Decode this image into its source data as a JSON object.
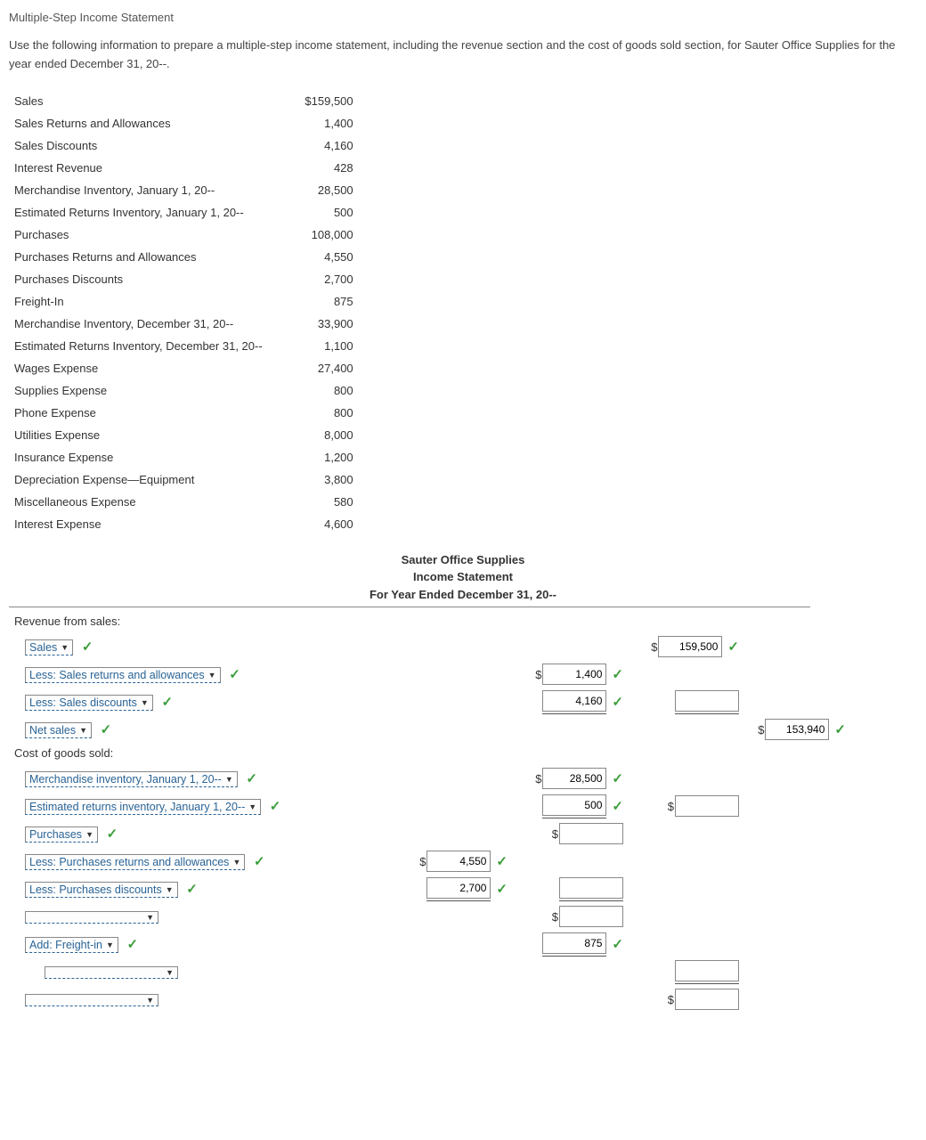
{
  "title": "Multiple-Step Income Statement",
  "instructions": "Use the following information to prepare a multiple-step income statement, including the revenue section and the cost of goods sold section, for Sauter Office Supplies for the year ended December 31, 20--.",
  "given": [
    {
      "label": "Sales",
      "value": "$159,500"
    },
    {
      "label": "Sales Returns and Allowances",
      "value": "1,400"
    },
    {
      "label": "Sales Discounts",
      "value": "4,160"
    },
    {
      "label": "Interest Revenue",
      "value": "428"
    },
    {
      "label": "Merchandise Inventory, January 1, 20--",
      "value": "28,500"
    },
    {
      "label": "Estimated Returns Inventory, January 1, 20--",
      "value": "500"
    },
    {
      "label": "Purchases",
      "value": "108,000"
    },
    {
      "label": "Purchases Returns and Allowances",
      "value": "4,550"
    },
    {
      "label": "Purchases Discounts",
      "value": "2,700"
    },
    {
      "label": "Freight-In",
      "value": "875"
    },
    {
      "label": "Merchandise Inventory, December 31, 20--",
      "value": "33,900"
    },
    {
      "label": "Estimated Returns Inventory, December 31, 20--",
      "value": "1,100"
    },
    {
      "label": "Wages Expense",
      "value": "27,400"
    },
    {
      "label": "Supplies Expense",
      "value": "800"
    },
    {
      "label": "Phone Expense",
      "value": "800"
    },
    {
      "label": "Utilities Expense",
      "value": "8,000"
    },
    {
      "label": "Insurance Expense",
      "value": "1,200"
    },
    {
      "label": "Depreciation Expense—Equipment",
      "value": "3,800"
    },
    {
      "label": "Miscellaneous Expense",
      "value": "580"
    },
    {
      "label": "Interest Expense",
      "value": "4,600"
    }
  ],
  "statement_header": {
    "company": "Sauter Office Supplies",
    "title": "Income Statement",
    "period": "For Year Ended December 31, 20--"
  },
  "sections": {
    "revenue_label": "Revenue from sales:",
    "cogs_label": "Cost of goods sold:"
  },
  "dropdowns": {
    "sales": "Sales",
    "less_sra": "Less: Sales returns and allowances",
    "less_sd": "Less: Sales discounts",
    "net_sales": "Net sales",
    "mi_jan": "Merchandise inventory, January 1, 20--",
    "eri_jan": "Estimated returns inventory, January 1, 20--",
    "purchases": "Purchases",
    "less_pra": "Less: Purchases returns and allowances",
    "less_pd": "Less: Purchases discounts",
    "add_freight": "Add: Freight-in"
  },
  "values": {
    "sales": "159,500",
    "sra": "1,400",
    "sd": "4,160",
    "net_sales": "153,940",
    "mi_jan": "28,500",
    "eri_jan": "500",
    "pra": "4,550",
    "pd": "2,700",
    "freight": "875"
  }
}
